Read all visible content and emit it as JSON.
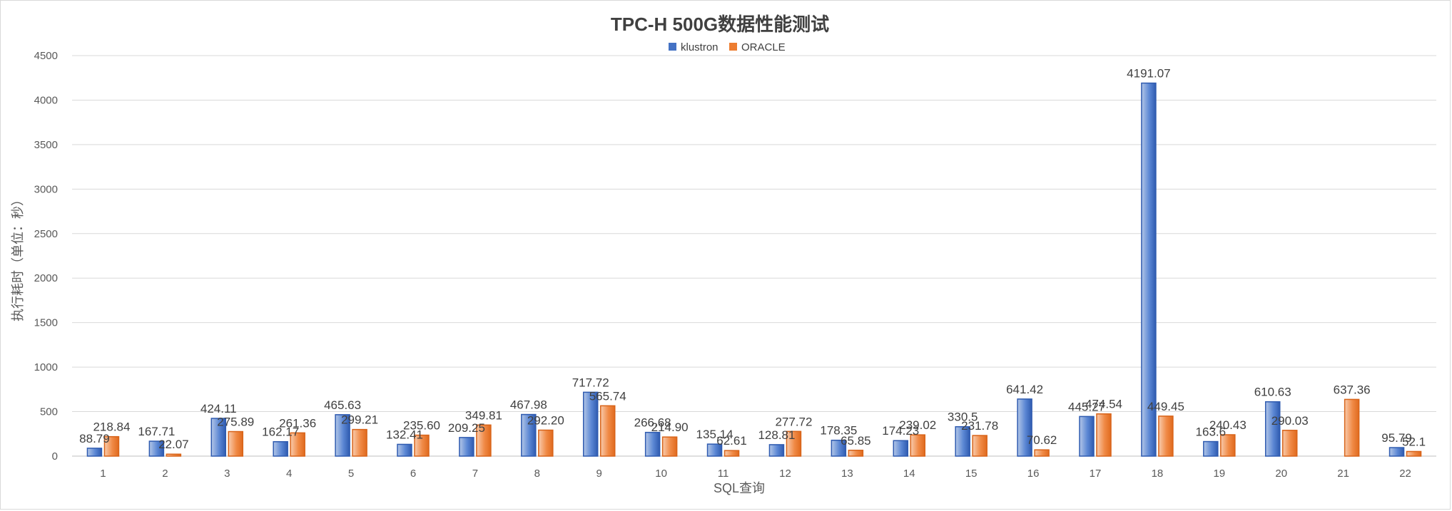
{
  "chart_data": {
    "type": "bar",
    "title": "TPC-H 500G数据性能测试",
    "xlabel": "SQL查询",
    "ylabel": "执行耗时（单位：秒）",
    "ylim": [
      0,
      4500
    ],
    "yticks": [
      0,
      500,
      1000,
      1500,
      2000,
      2500,
      3000,
      3500,
      4000,
      4500
    ],
    "grid": true,
    "legend_position": "top-center",
    "categories": [
      "1",
      "2",
      "3",
      "4",
      "5",
      "6",
      "7",
      "8",
      "9",
      "10",
      "11",
      "12",
      "13",
      "14",
      "15",
      "16",
      "17",
      "18",
      "19",
      "20",
      "21",
      "22"
    ],
    "series": [
      {
        "name": "klustron",
        "color": "#4472C4",
        "values": [
          88.79,
          167.71,
          424.11,
          162.17,
          465.63,
          132.41,
          209.25,
          467.98,
          717.72,
          266.68,
          135.14,
          128.81,
          178.35,
          174.23,
          330.5,
          641.42,
          445.27,
          4191.07,
          163.6,
          610.63,
          null,
          95.79
        ],
        "labels": [
          "88.79",
          "167.71",
          "424.11",
          "162.17",
          "465.63",
          "132.41",
          "209.25",
          "467.98",
          "717.72",
          "266.68",
          "135.14",
          "128.81",
          "178.35",
          "174.23",
          "330.5",
          "641.42",
          "445.27",
          "4191.07",
          "163.6",
          "610.63",
          "",
          "95.79"
        ]
      },
      {
        "name": "ORACLE",
        "color": "#ED7D31",
        "values": [
          218.84,
          22.07,
          275.89,
          261.36,
          299.21,
          235.6,
          349.81,
          292.2,
          565.74,
          214.9,
          62.61,
          277.72,
          65.85,
          239.02,
          231.78,
          70.62,
          474.54,
          449.45,
          240.43,
          290.03,
          637.36,
          52.1
        ],
        "labels": [
          "218.84",
          "22.07",
          "275.89",
          "261.36",
          "299.21",
          "235.60",
          "349.81",
          "292.20",
          "565.74",
          "214.90",
          "62.61",
          "277.72",
          "65.85",
          "239.02",
          "231.78",
          "70.62",
          "474.54",
          "449.45",
          "240.43",
          "290.03",
          "637.36",
          "52.1"
        ]
      }
    ]
  }
}
